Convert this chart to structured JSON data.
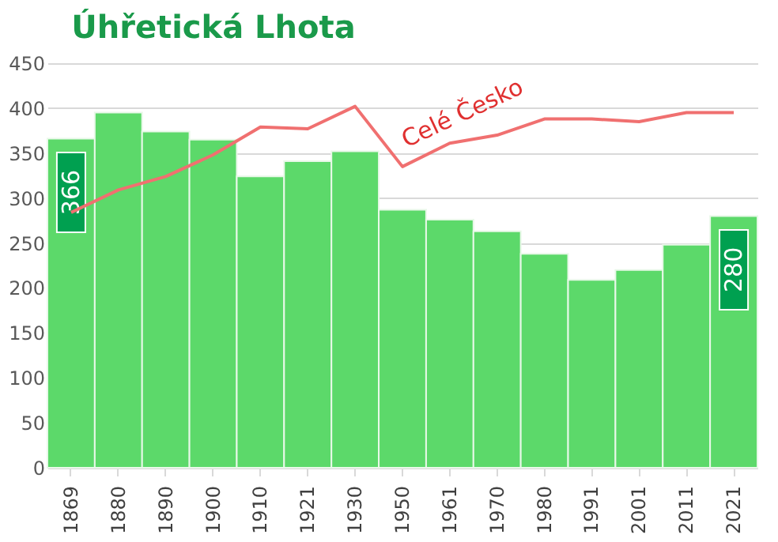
{
  "chart_data": {
    "type": "bar",
    "title": "Úhřetická Lhota",
    "categories": [
      "1869",
      "1880",
      "1890",
      "1900",
      "1910",
      "1921",
      "1930",
      "1950",
      "1961",
      "1970",
      "1980",
      "1991",
      "2001",
      "2011",
      "2021"
    ],
    "series": [
      {
        "color": "#5cd96a",
        "values": [
          366,
          395,
          374,
          365,
          324,
          341,
          352,
          287,
          276,
          263,
          238,
          209,
          220,
          248,
          280
        ],
        "value_labels": [
          "366",
          null,
          null,
          null,
          null,
          null,
          null,
          null,
          null,
          null,
          null,
          null,
          null,
          null,
          "280"
        ]
      },
      {
        "type": "line",
        "name": "Celé Česko",
        "color": "#f07070",
        "values": [
          284,
          309,
          324,
          348,
          379,
          377,
          402,
          335,
          361,
          370,
          388,
          388,
          385,
          395,
          395
        ]
      }
    ],
    "ylim": [
      0,
      450
    ],
    "yticks": [
      0,
      50,
      100,
      150,
      200,
      250,
      300,
      350,
      400,
      450
    ],
    "grid": "y"
  }
}
